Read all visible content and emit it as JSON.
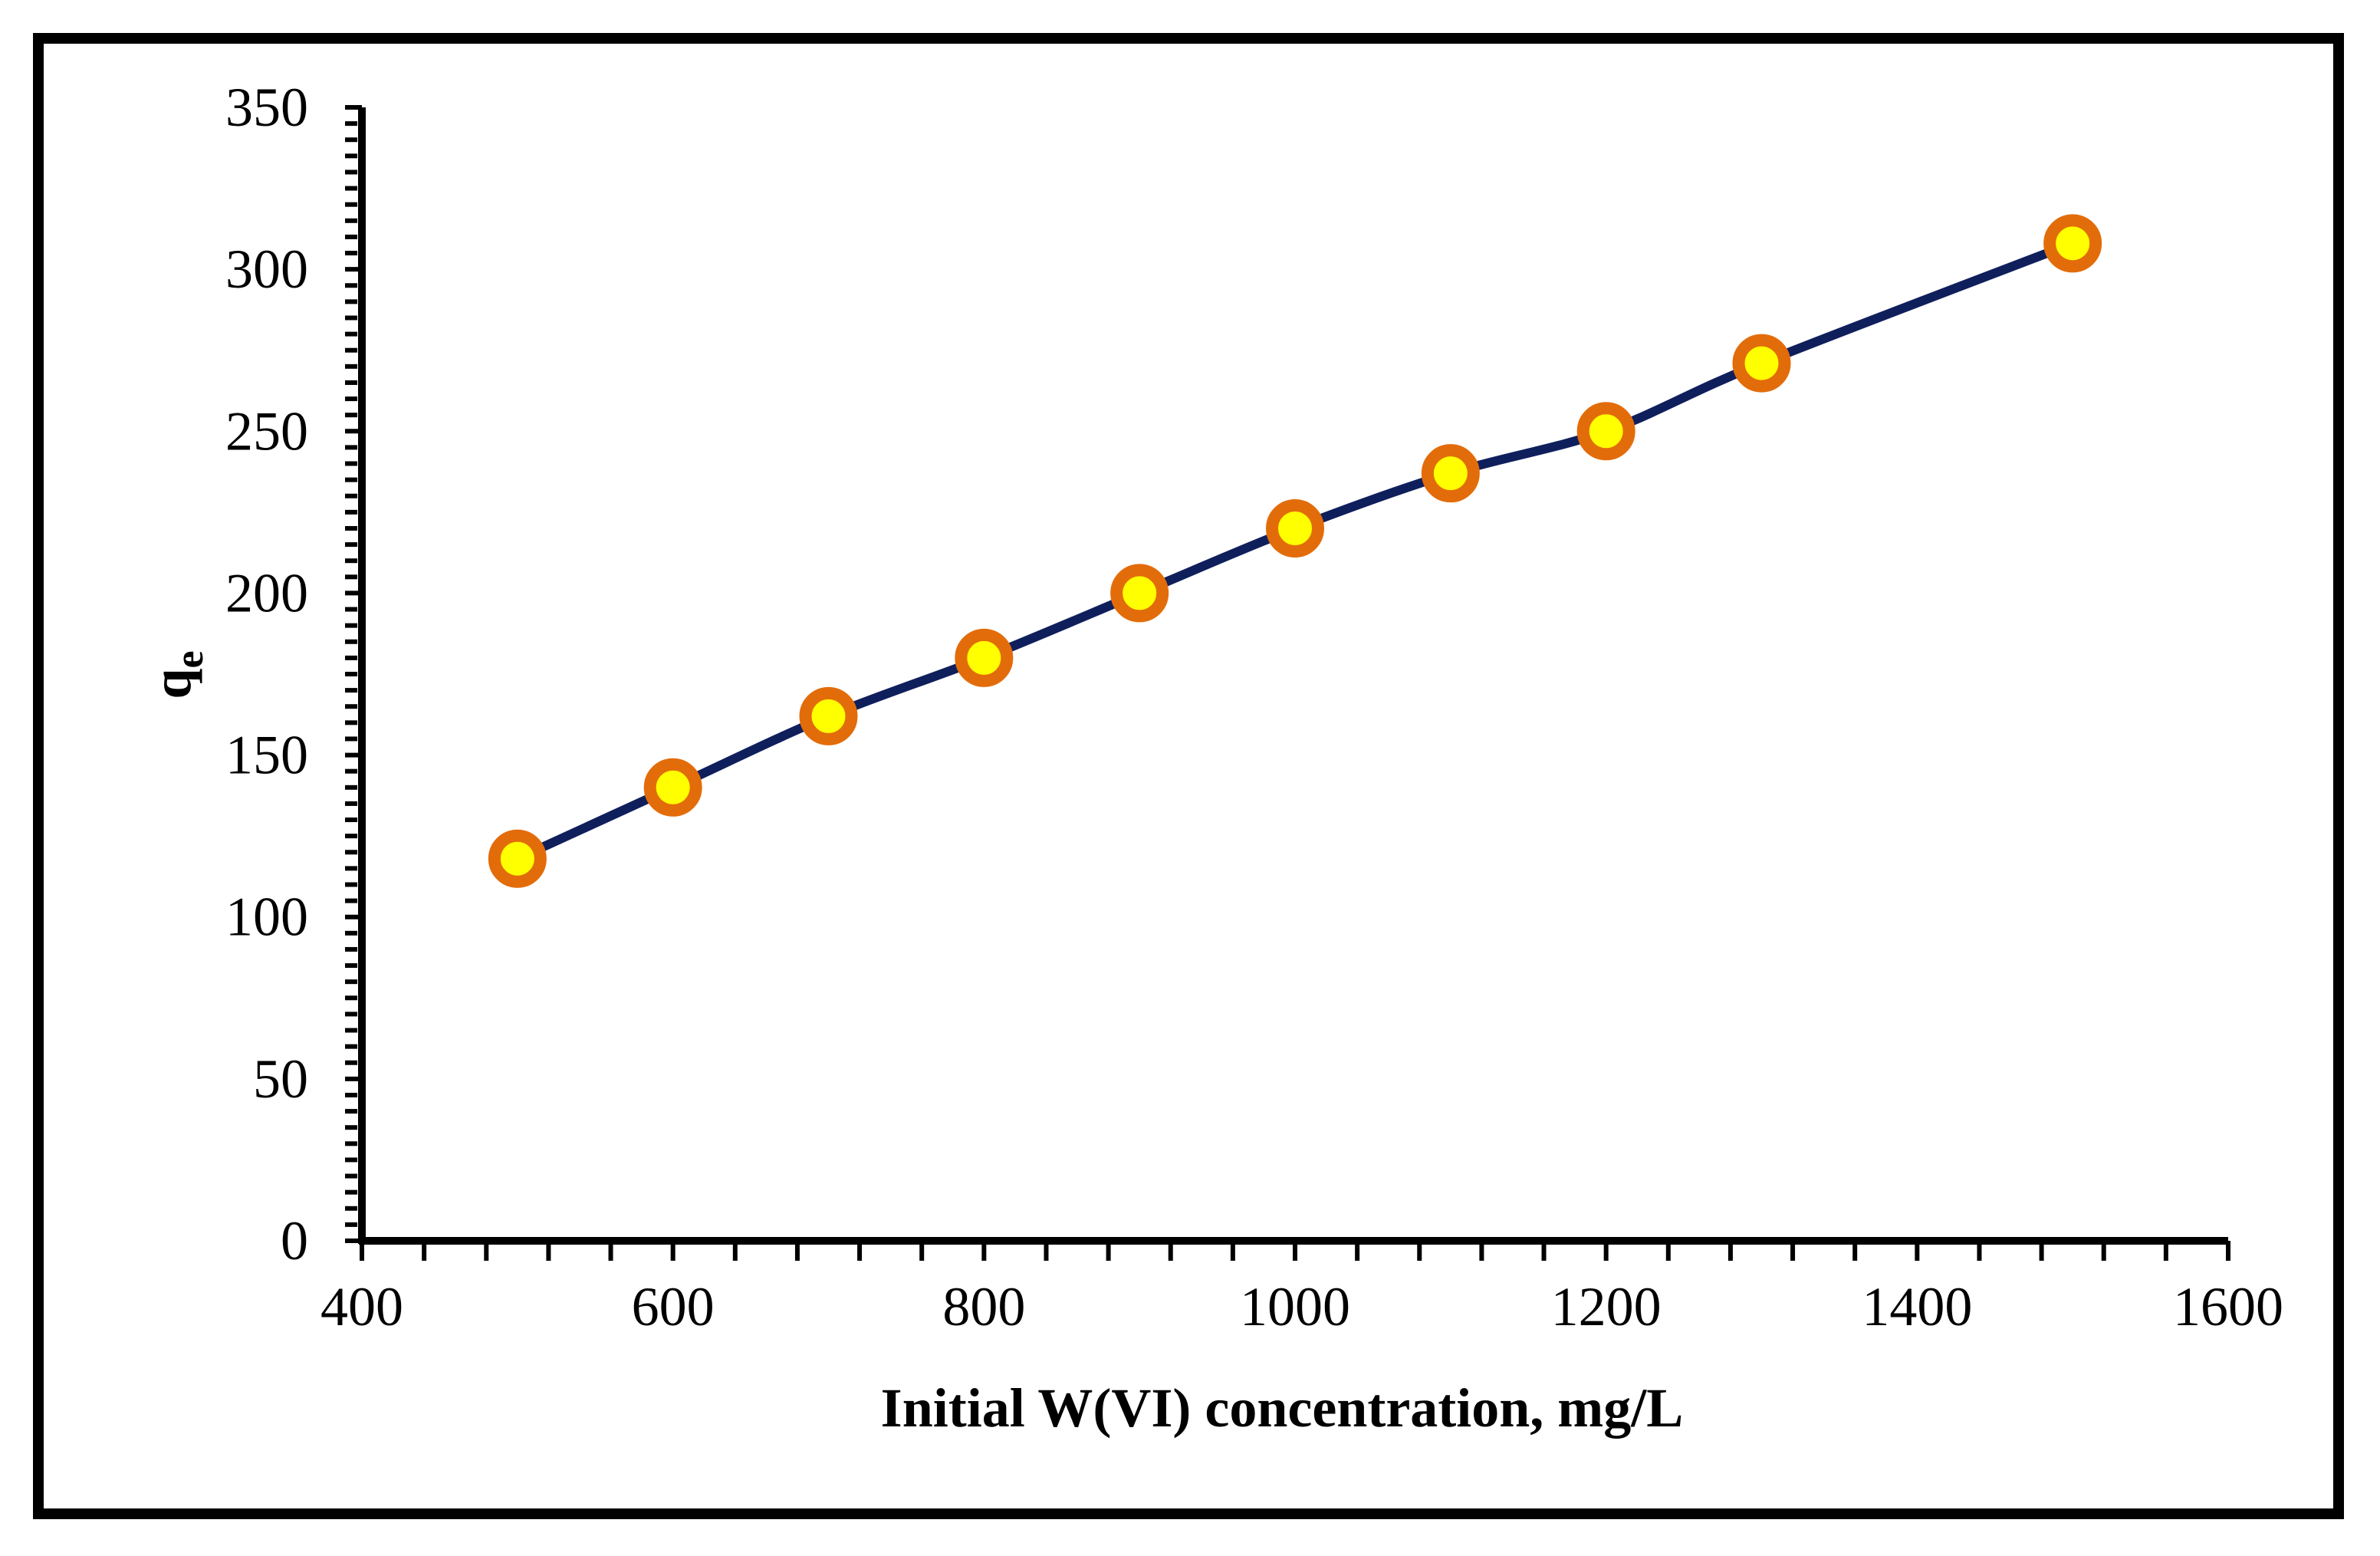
{
  "chart_data": {
    "type": "line",
    "title": "",
    "xlabel": "Initial W(VI) concentration, mg/L",
    "ylabel_main": "q",
    "ylabel_sub": "e",
    "xlim": [
      400,
      1600
    ],
    "ylim": [
      0,
      350
    ],
    "x_ticks": [
      400,
      600,
      800,
      1000,
      1200,
      1400,
      1600
    ],
    "y_ticks": [
      0,
      50,
      100,
      150,
      200,
      250,
      300,
      350
    ],
    "series": [
      {
        "name": "qe",
        "x": [
          500,
          600,
          700,
          800,
          900,
          1000,
          1100,
          1200,
          1300,
          1500
        ],
        "values": [
          118,
          140,
          162,
          180,
          200,
          220,
          237,
          250,
          271,
          308
        ]
      }
    ],
    "colors": {
      "line": "#0f1f5c",
      "marker_fill": "#ffff00",
      "marker_edge": "#e36c0a",
      "axis": "#000000",
      "frame": "#000000"
    }
  }
}
